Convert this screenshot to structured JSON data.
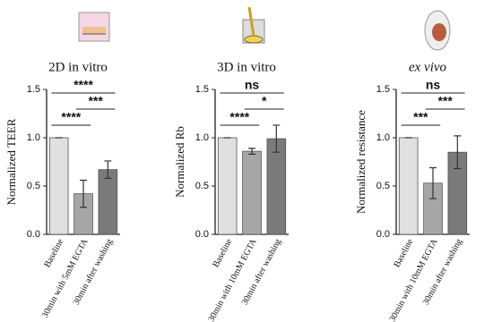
{
  "chart_data": [
    {
      "type": "bar",
      "title": "2D in vitro",
      "ylabel": "Normalized TEER",
      "categories": [
        "Baseline",
        "30min with 5mM EGTA",
        "30min after washing"
      ],
      "values": [
        1.0,
        0.42,
        0.67
      ],
      "errors": [
        0,
        0.14,
        0.09
      ],
      "colors": [
        "#e0e0e0",
        "#a6a6a6",
        "#7a7a7a"
      ],
      "ylim": [
        0,
        1.5
      ],
      "yticks": [
        {
          "value": 0,
          "label": "0.0"
        },
        {
          "value": 0.5,
          "label": "0.5"
        },
        {
          "value": 1,
          "label": "1.0"
        },
        {
          "value": 1.5,
          "label": "1.5"
        }
      ],
      "annotations": [
        {
          "label": "****",
          "from": 0,
          "to": 1
        },
        {
          "label": "***",
          "from": 1,
          "to": 2
        },
        {
          "label": "****",
          "from": 0,
          "to": 2
        }
      ]
    },
    {
      "type": "bar",
      "title": "3D in vitro",
      "ylabel": "Normalized Rb",
      "categories": [
        "Baseline",
        "30min with 10mM EGTA",
        "30min after washing"
      ],
      "values": [
        1.0,
        0.86,
        0.99
      ],
      "errors": [
        0,
        0.03,
        0.14
      ],
      "colors": [
        "#e0e0e0",
        "#a6a6a6",
        "#7a7a7a"
      ],
      "ylim": [
        0,
        1.5
      ],
      "yticks": [
        {
          "value": 0,
          "label": "0.0"
        },
        {
          "value": 0.5,
          "label": "0.5"
        },
        {
          "value": 1,
          "label": "1.0"
        },
        {
          "value": 1.5,
          "label": "1.5"
        }
      ],
      "annotations": [
        {
          "label": "****",
          "from": 0,
          "to": 1
        },
        {
          "label": "*",
          "from": 1,
          "to": 2
        },
        {
          "label": "ns",
          "from": 0,
          "to": 2
        }
      ]
    },
    {
      "type": "bar",
      "title": "ex vivo",
      "ylabel": "Normalized resistance",
      "categories": [
        "Baseline",
        "30min with 10mM EGTA",
        "30min after washing"
      ],
      "values": [
        1.0,
        0.53,
        0.85
      ],
      "errors": [
        0,
        0.16,
        0.17
      ],
      "colors": [
        "#e0e0e0",
        "#a6a6a6",
        "#7a7a7a"
      ],
      "ylim": [
        0,
        1.5
      ],
      "yticks": [
        {
          "value": 0,
          "label": "0.0"
        },
        {
          "value": 0.5,
          "label": "0.5"
        },
        {
          "value": 1,
          "label": "1.0"
        },
        {
          "value": 1.5,
          "label": "1.5"
        }
      ],
      "annotations": [
        {
          "label": "***",
          "from": 0,
          "to": 1
        },
        {
          "label": "***",
          "from": 1,
          "to": 2
        },
        {
          "label": "ns",
          "from": 0,
          "to": 2
        }
      ]
    }
  ]
}
